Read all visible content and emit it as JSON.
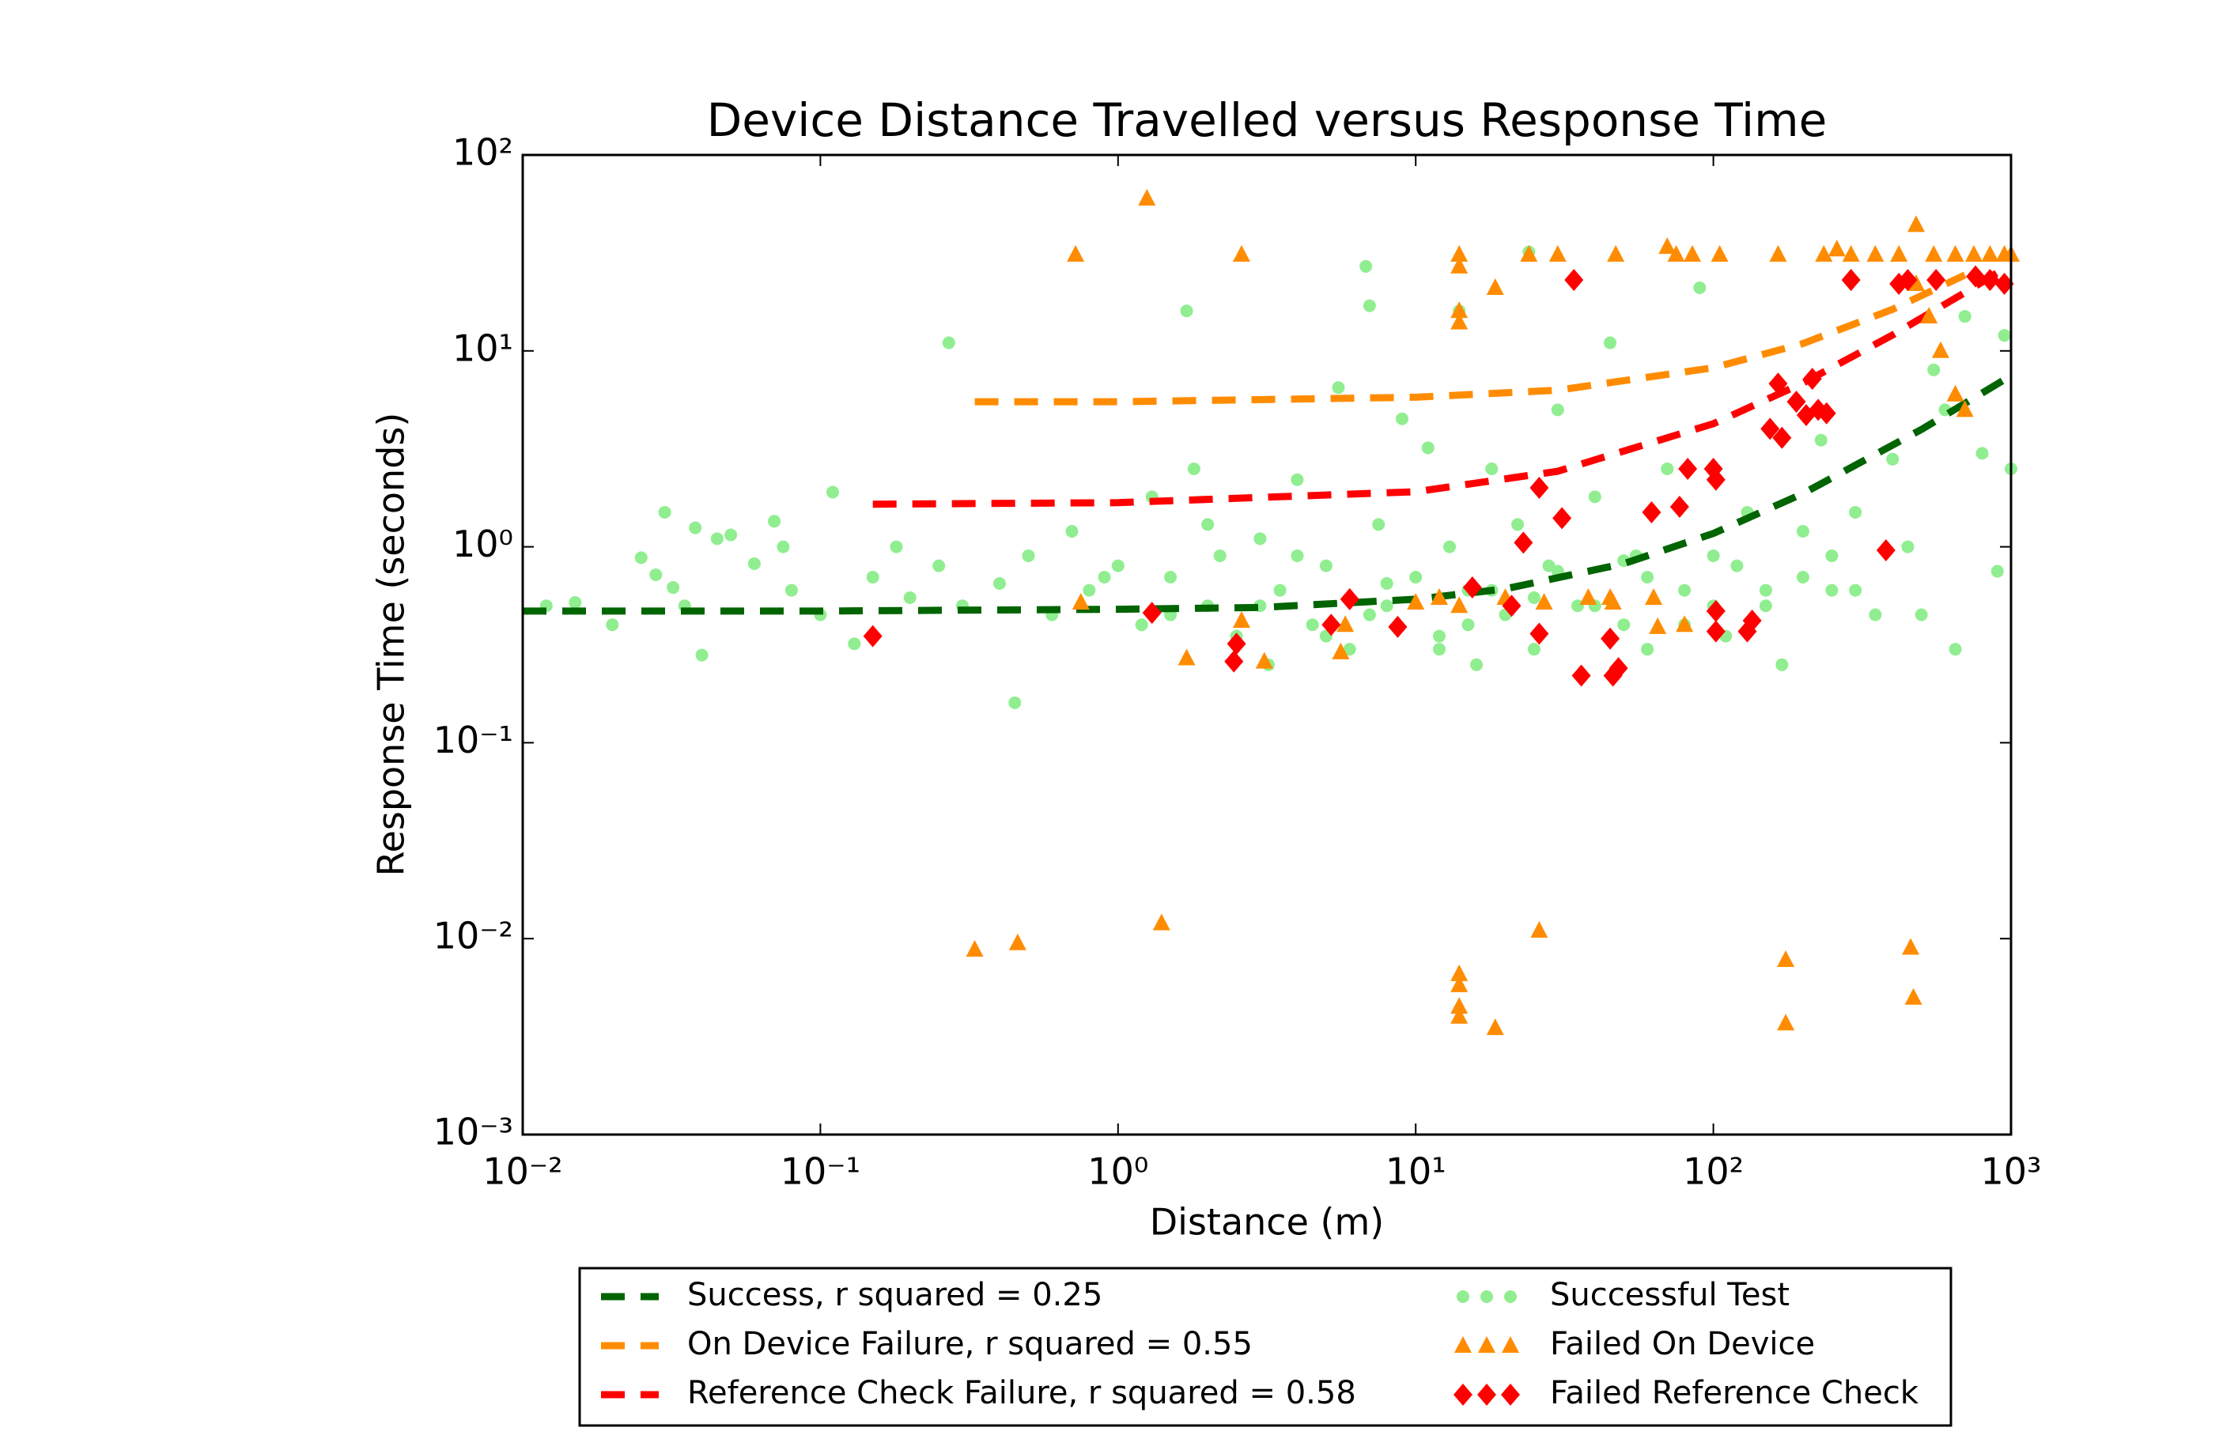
{
  "chart_data": {
    "type": "scatter",
    "title": "Device Distance Travelled versus Response Time",
    "x_label": "Distance (m)",
    "y_label": "Response Time (seconds)",
    "log_x": true,
    "log_y": true,
    "xlim": [
      0.01,
      1000
    ],
    "ylim": [
      0.001,
      100
    ],
    "xticks": [
      {
        "value": 0.01,
        "label": "10⁻²"
      },
      {
        "value": 0.1,
        "label": "10⁻¹"
      },
      {
        "value": 1,
        "label": "10⁰"
      },
      {
        "value": 10,
        "label": "10¹"
      },
      {
        "value": 100,
        "label": "10²"
      },
      {
        "value": 1000,
        "label": "10³"
      }
    ],
    "yticks": [
      {
        "value": 0.001,
        "label": "10⁻³"
      },
      {
        "value": 0.01,
        "label": "10⁻²"
      },
      {
        "value": 0.1,
        "label": "10⁻¹"
      },
      {
        "value": 1,
        "label": "10⁰"
      },
      {
        "value": 10,
        "label": "10¹"
      },
      {
        "value": 100,
        "label": "10²"
      }
    ],
    "series": [
      {
        "name": "Successful Test",
        "color": "#90ee90",
        "marker": "circle",
        "x": [
          0.012,
          0.015,
          0.02,
          0.025,
          0.028,
          0.03,
          0.032,
          0.035,
          0.038,
          0.04,
          0.045,
          0.05,
          0.06,
          0.07,
          0.075,
          0.08,
          0.1,
          0.11,
          0.13,
          0.15,
          0.18,
          0.2,
          0.25,
          0.27,
          0.3,
          0.4,
          0.45,
          0.5,
          0.6,
          0.7,
          0.8,
          1.0,
          1.2,
          1.3,
          1.5,
          1.7,
          1.8,
          2.0,
          2.2,
          2.5,
          3.0,
          3.2,
          3.5,
          4,
          4.5,
          5,
          5.5,
          6,
          6.8,
          7,
          7.5,
          8,
          9,
          10,
          11,
          12,
          13,
          14,
          15,
          16,
          18,
          20,
          22,
          24,
          25,
          28,
          30,
          35,
          40,
          45,
          50,
          55,
          60,
          70,
          80,
          90,
          100,
          110,
          130,
          150,
          170,
          200,
          230,
          250,
          300,
          350,
          400,
          450,
          500,
          550,
          600,
          650,
          700,
          800,
          900,
          950,
          1000,
          300,
          120,
          60,
          25,
          8,
          3,
          1.5,
          0.9,
          5,
          15,
          40,
          100,
          200,
          2,
          4,
          7,
          12,
          18,
          30,
          50,
          80,
          150,
          250
        ],
        "values": [
          0.5,
          0.52,
          0.4,
          0.88,
          0.72,
          1.5,
          0.62,
          0.5,
          1.25,
          0.28,
          1.1,
          1.15,
          0.82,
          1.35,
          1.0,
          0.6,
          0.45,
          1.9,
          0.32,
          0.7,
          1.0,
          0.55,
          0.8,
          11,
          0.5,
          0.65,
          0.16,
          0.9,
          0.45,
          1.2,
          0.6,
          0.8,
          0.4,
          1.8,
          0.7,
          16,
          2.5,
          0.5,
          0.9,
          0.35,
          1.1,
          0.25,
          0.6,
          2.2,
          0.4,
          0.8,
          6.5,
          0.3,
          27,
          17,
          1.3,
          0.5,
          4.5,
          0.7,
          3.2,
          0.35,
          1.0,
          16,
          0.6,
          0.25,
          2.5,
          0.45,
          1.3,
          32,
          0.3,
          0.8,
          5,
          0.5,
          1.8,
          11,
          0.4,
          0.9,
          0.3,
          2.5,
          0.6,
          21,
          0.9,
          0.35,
          1.5,
          0.5,
          0.25,
          1.2,
          3.5,
          0.6,
          1.5,
          0.45,
          2.8,
          1.0,
          0.45,
          8,
          5,
          0.3,
          15,
          3,
          0.75,
          12,
          2.5,
          0.6,
          0.8,
          0.7,
          0.55,
          0.65,
          0.5,
          0.45,
          0.7,
          0.35,
          0.4,
          0.5,
          0.5,
          0.7,
          1.3,
          0.9,
          0.45,
          0.3,
          0.6,
          0.75,
          0.85,
          0.4,
          0.6,
          0.9
        ]
      },
      {
        "name": "Failed On Device",
        "color": "#ff8c00",
        "marker": "triangle",
        "x": [
          1.25,
          0.72,
          2.6,
          14,
          14,
          14,
          14,
          18.5,
          24,
          30,
          47,
          70,
          75,
          85,
          105,
          165,
          235,
          260,
          290,
          350,
          420,
          480,
          550,
          650,
          750,
          850,
          950,
          1000,
          480,
          530,
          580,
          650,
          700,
          0.75,
          1.7,
          2.6,
          3.1,
          5.6,
          5.8,
          10,
          12,
          14,
          20,
          27,
          38,
          45,
          46,
          63,
          65,
          80,
          0.33,
          0.46,
          1.4,
          14,
          14,
          14,
          14,
          18.5,
          26,
          175,
          175,
          460,
          470
        ],
        "values": [
          60,
          31,
          31,
          31,
          27,
          16,
          14,
          21,
          31,
          31,
          31,
          34,
          31,
          31,
          31,
          31,
          31,
          33,
          31,
          31,
          31,
          44,
          31,
          31,
          31,
          31,
          31,
          31,
          22,
          15,
          10,
          6,
          5,
          0.52,
          0.27,
          0.42,
          0.26,
          0.29,
          0.4,
          0.52,
          0.55,
          0.5,
          0.55,
          0.52,
          0.55,
          0.55,
          0.52,
          0.55,
          0.39,
          0.4,
          0.0088,
          0.0095,
          0.012,
          0.0066,
          0.0058,
          0.0045,
          0.004,
          0.0035,
          0.011,
          0.0078,
          0.0037,
          0.009,
          0.005
        ]
      },
      {
        "name": "Failed Reference Check",
        "color": "#ff0000",
        "marker": "diamond",
        "x": [
          0.15,
          1.3,
          2.45,
          2.5,
          5.2,
          6,
          8.7,
          15.5,
          21,
          23,
          26,
          26,
          31,
          34,
          36,
          45,
          46,
          48,
          62,
          77,
          82,
          100,
          102,
          102,
          102,
          130,
          135,
          155,
          165,
          170,
          190,
          205,
          215,
          225,
          240,
          290,
          380,
          420,
          450,
          560,
          760,
          850,
          950
        ],
        "values": [
          0.35,
          0.46,
          0.26,
          0.32,
          0.4,
          0.54,
          0.39,
          0.62,
          0.5,
          1.05,
          2.0,
          0.36,
          1.4,
          23,
          0.22,
          0.34,
          0.22,
          0.24,
          1.5,
          1.6,
          2.5,
          2.5,
          2.2,
          0.47,
          0.37,
          0.37,
          0.42,
          4.0,
          6.8,
          3.6,
          5.5,
          4.7,
          7.2,
          5.0,
          4.8,
          23,
          0.96,
          22,
          23,
          23,
          24,
          23,
          22
        ]
      },
      {
        "name": "Success, r squared = 0.25",
        "color": "#006400",
        "linestyle": "dashed",
        "x": [
          0.01,
          0.1,
          1,
          3,
          10,
          20,
          50,
          100,
          200,
          500,
          1000
        ],
        "values": [
          0.47,
          0.47,
          0.48,
          0.49,
          0.54,
          0.61,
          0.82,
          1.17,
          1.87,
          3.97,
          7.47
        ]
      },
      {
        "name": "On Device Failure, r squared = 0.55",
        "color": "#ff8c00",
        "linestyle": "dashed",
        "x": [
          0.33,
          1,
          10,
          30,
          100,
          200,
          400,
          700
        ],
        "values": [
          5.5,
          5.5,
          5.8,
          6.3,
          8.2,
          10.9,
          16.3,
          24.4
        ]
      },
      {
        "name": "Reference Check Failure, r squared = 0.58",
        "color": "#ff0000",
        "linestyle": "dashed",
        "x": [
          0.15,
          1,
          10,
          30,
          100,
          200,
          400,
          700,
          900
        ],
        "values": [
          1.65,
          1.68,
          1.91,
          2.43,
          4.25,
          6.85,
          12.05,
          19.85,
          25.05
        ]
      }
    ]
  }
}
